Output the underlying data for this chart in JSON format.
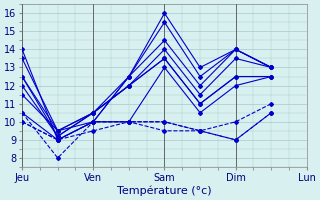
{
  "xlabel": "Température (°c)",
  "ylabel": "",
  "xlim": [
    0,
    96
  ],
  "ylim": [
    7.5,
    16.5
  ],
  "yticks": [
    8,
    9,
    10,
    11,
    12,
    13,
    14,
    15,
    16
  ],
  "xtick_positions": [
    0,
    24,
    48,
    72,
    96
  ],
  "xtick_labels": [
    "Jeu",
    "Ven",
    "Sam",
    "Dim",
    "Lun"
  ],
  "vline_positions": [
    0,
    24,
    48,
    72,
    96
  ],
  "bg_color": "#d8f0f0",
  "grid_color": "#a8c8c8",
  "line_color": "#0000cc",
  "series": [
    [
      13.5,
      9.5,
      10.0,
      12.5,
      16.0,
      13.0,
      14.0,
      13.0
    ],
    [
      14.0,
      9.0,
      10.0,
      12.5,
      15.5,
      12.5,
      14.0,
      13.0
    ],
    [
      12.5,
      9.2,
      10.5,
      12.5,
      14.5,
      12.0,
      14.0,
      13.0
    ],
    [
      12.5,
      9.5,
      10.5,
      12.0,
      14.0,
      11.5,
      13.5,
      13.0
    ],
    [
      12.0,
      9.2,
      10.5,
      12.0,
      13.5,
      11.0,
      12.5,
      12.5
    ],
    [
      11.5,
      9.5,
      10.5,
      12.0,
      13.5,
      11.0,
      12.5,
      12.5
    ],
    [
      10.5,
      9.0,
      10.0,
      10.0,
      13.0,
      10.5,
      12.0,
      12.5
    ],
    [
      10.5,
      8.0,
      10.0,
      10.0,
      10.0,
      9.5,
      10.0,
      11.0
    ],
    [
      10.0,
      9.0,
      10.0,
      10.0,
      10.0,
      9.5,
      9.0,
      10.5
    ],
    [
      10.0,
      9.0,
      9.5,
      10.0,
      9.5,
      9.5,
      9.0,
      10.5
    ]
  ],
  "series_x": [
    0,
    12,
    24,
    36,
    48,
    60,
    72,
    84
  ],
  "linestyles": [
    "solid",
    "solid",
    "solid",
    "solid",
    "solid",
    "solid",
    "solid",
    "dashed",
    "dashed",
    "dashed"
  ]
}
